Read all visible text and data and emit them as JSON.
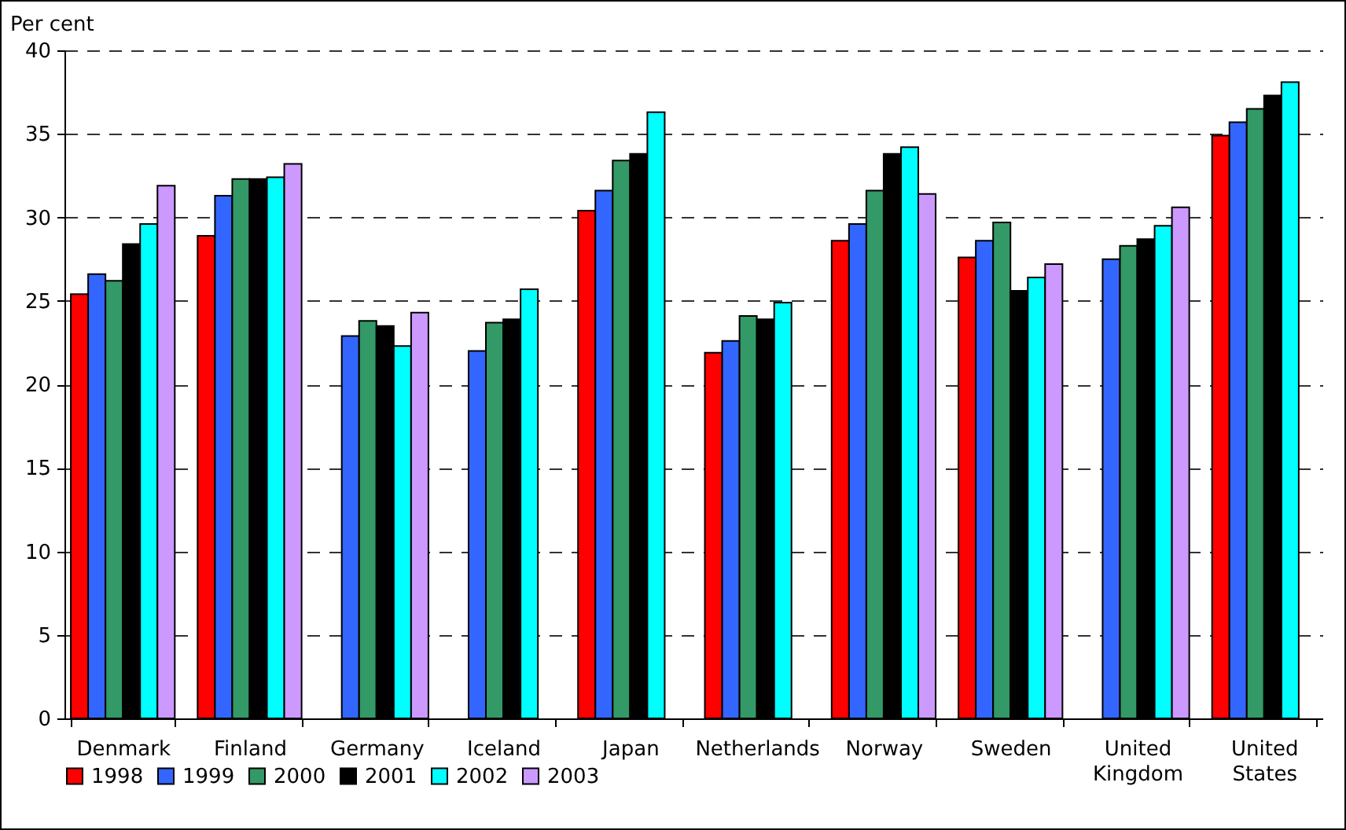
{
  "chart_data": {
    "type": "bar",
    "ylabel": "Per cent",
    "categories": [
      "Denmark",
      "Finland",
      "Germany",
      "Iceland",
      "Japan",
      "Netherlands",
      "Norway",
      "Sweden",
      "United Kingdom",
      "United States"
    ],
    "series": [
      {
        "name": "1998",
        "color": "#ff0000",
        "values": [
          25.4,
          28.9,
          null,
          null,
          30.4,
          21.9,
          28.6,
          27.6,
          null,
          34.9
        ]
      },
      {
        "name": "1999",
        "color": "#3366ff",
        "values": [
          26.6,
          31.3,
          22.9,
          22.0,
          31.6,
          22.6,
          29.6,
          28.6,
          27.5,
          35.7
        ]
      },
      {
        "name": "2000",
        "color": "#339966",
        "values": [
          26.2,
          32.3,
          23.8,
          23.7,
          33.4,
          24.1,
          31.6,
          29.7,
          28.3,
          36.5
        ]
      },
      {
        "name": "2001",
        "color": "#000000",
        "values": [
          28.4,
          32.3,
          23.5,
          23.9,
          33.8,
          23.9,
          33.8,
          25.6,
          28.7,
          37.3
        ]
      },
      {
        "name": "2002",
        "color": "#00ffff",
        "values": [
          29.6,
          32.4,
          22.3,
          25.7,
          36.3,
          24.9,
          34.2,
          26.4,
          29.5,
          38.1
        ]
      },
      {
        "name": "2003",
        "color": "#cc99ff",
        "values": [
          31.9,
          33.2,
          24.3,
          null,
          null,
          null,
          31.4,
          27.2,
          30.6,
          null
        ]
      }
    ],
    "ylim": [
      0,
      40
    ],
    "yticks": [
      0,
      5,
      10,
      15,
      20,
      25,
      30,
      35,
      40
    ],
    "grid": "y",
    "legend": "bottom"
  }
}
